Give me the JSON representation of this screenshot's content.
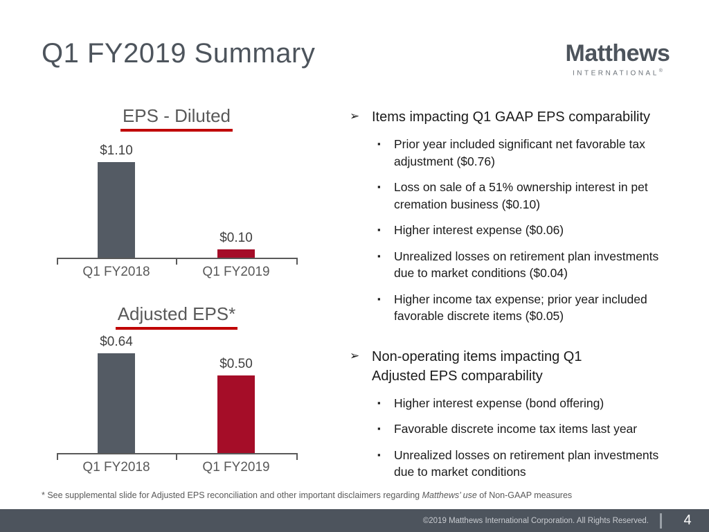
{
  "slide_title": "Q1 FY2019 Summary",
  "logo": {
    "brand": "Matthews",
    "subtitle": "INTERNATIONAL",
    "registered_mark": "®"
  },
  "icons": {
    "group_bullet": "➢",
    "sub_bullet": "▪"
  },
  "colors": {
    "slate": "#4D545C",
    "chart_title_gray": "#595959",
    "underline_red": "#C00000",
    "bar_gray": "#545B64",
    "bar_red": "#A50D28",
    "footer_bg": "#4D545D"
  },
  "chart_data": [
    {
      "type": "bar",
      "title": "EPS - Diluted",
      "categories": [
        "Q1 FY2018",
        "Q1 FY2019"
      ],
      "values": [
        1.1,
        0.1
      ],
      "data_labels": [
        "$1.10",
        "$0.10"
      ],
      "bar_colors": [
        "#545B64",
        "#A50D28"
      ],
      "xlabel": "",
      "ylabel": "",
      "ylim": [
        0,
        1.2
      ],
      "grid": false,
      "legend": false
    },
    {
      "type": "bar",
      "title": "Adjusted EPS*",
      "categories": [
        "Q1 FY2018",
        "Q1 FY2019"
      ],
      "values": [
        0.64,
        0.5
      ],
      "data_labels": [
        "$0.64",
        "$0.50"
      ],
      "bar_colors": [
        "#545B64",
        "#A50D28"
      ],
      "xlabel": "",
      "ylabel": "",
      "ylim": [
        0,
        0.72
      ],
      "grid": false,
      "legend": false
    }
  ],
  "bullets": [
    {
      "heading": "Items impacting Q1 GAAP EPS comparability",
      "items": [
        "Prior year included significant net favorable tax adjustment ($0.76)",
        "Loss on sale of a 51% ownership interest in pet cremation business ($0.10)",
        "Higher interest expense ($0.06)",
        "Unrealized losses on retirement plan investments due to market conditions ($0.04)",
        "Higher income tax expense; prior year included favorable discrete items ($0.05)"
      ]
    },
    {
      "heading": "Non-operating items impacting Q1 Adjusted EPS comparability",
      "items": [
        "Higher interest expense (bond offering)",
        "Favorable discrete income tax items last year",
        "Unrealized losses on retirement plan investments due to market conditions"
      ]
    }
  ],
  "footnote": {
    "prefix": "* See supplemental slide for Adjusted EPS reconciliation and other important disclaimers regarding ",
    "italic": "Matthews’ use",
    "suffix": " of Non-GAAP measures"
  },
  "footer": {
    "copyright": "©2019 Matthews International Corporation. All Rights Reserved.",
    "page_number": "4"
  }
}
